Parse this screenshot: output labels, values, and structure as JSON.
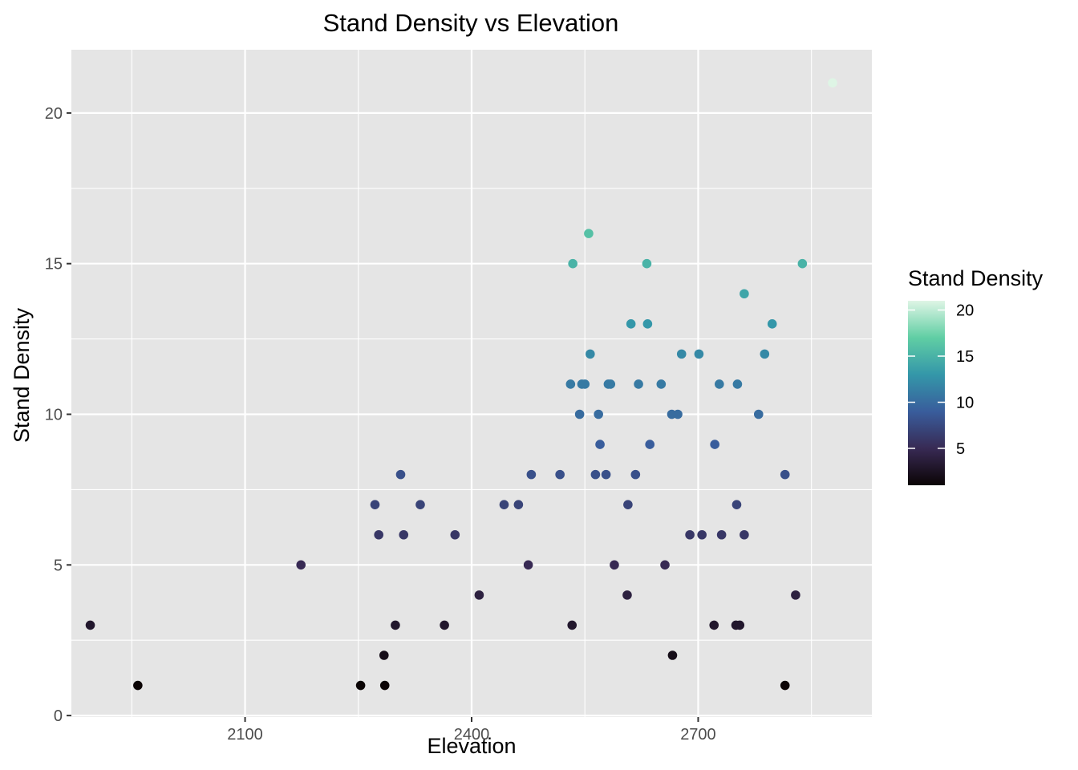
{
  "chart_data": {
    "type": "scatter",
    "title": "Stand Density vs Elevation",
    "xlabel": "Elevation",
    "ylabel": "Stand Density",
    "xlim": [
      1870,
      2930
    ],
    "ylim": [
      -0.05,
      22.1
    ],
    "x_ticks": [
      2100,
      2400,
      2700
    ],
    "y_ticks": [
      0,
      5,
      10,
      15,
      20
    ],
    "x_tick_labels": [
      "2100",
      "2400",
      "2700"
    ],
    "y_tick_labels": [
      "0",
      "5",
      "10",
      "15",
      "20"
    ],
    "grid": true,
    "legend": {
      "title": "Stand Density",
      "placement": "right",
      "type": "colorbar",
      "range": [
        1,
        21
      ],
      "ticks": [
        5,
        10,
        15,
        20
      ],
      "tick_labels": [
        "5",
        "10",
        "15",
        "20"
      ]
    },
    "colormap": [
      "#0b0405",
      "#382a54",
      "#395d9c",
      "#3497a9",
      "#60cea4",
      "#def5e5"
    ],
    "background": "#e5e5e5",
    "points": [
      {
        "x": 1895,
        "y": 3
      },
      {
        "x": 1958,
        "y": 1
      },
      {
        "x": 2174,
        "y": 5
      },
      {
        "x": 2253,
        "y": 1
      },
      {
        "x": 2285,
        "y": 1
      },
      {
        "x": 2284,
        "y": 2
      },
      {
        "x": 2299,
        "y": 3
      },
      {
        "x": 2364,
        "y": 3
      },
      {
        "x": 2410,
        "y": 4
      },
      {
        "x": 2272,
        "y": 7
      },
      {
        "x": 2277,
        "y": 6
      },
      {
        "x": 2306,
        "y": 8
      },
      {
        "x": 2310,
        "y": 6
      },
      {
        "x": 2332,
        "y": 7
      },
      {
        "x": 2378,
        "y": 6
      },
      {
        "x": 2443,
        "y": 7
      },
      {
        "x": 2462,
        "y": 7
      },
      {
        "x": 2475,
        "y": 5
      },
      {
        "x": 2479,
        "y": 8
      },
      {
        "x": 2517,
        "y": 8
      },
      {
        "x": 2533,
        "y": 3
      },
      {
        "x": 2531,
        "y": 11
      },
      {
        "x": 2534,
        "y": 15
      },
      {
        "x": 2543,
        "y": 10
      },
      {
        "x": 2546,
        "y": 11
      },
      {
        "x": 2550,
        "y": 11
      },
      {
        "x": 2555,
        "y": 16
      },
      {
        "x": 2557,
        "y": 12
      },
      {
        "x": 2564,
        "y": 8
      },
      {
        "x": 2568,
        "y": 10
      },
      {
        "x": 2570,
        "y": 9
      },
      {
        "x": 2578,
        "y": 8
      },
      {
        "x": 2581,
        "y": 11
      },
      {
        "x": 2584,
        "y": 11
      },
      {
        "x": 2589,
        "y": 5
      },
      {
        "x": 2606,
        "y": 4
      },
      {
        "x": 2607,
        "y": 7
      },
      {
        "x": 2611,
        "y": 13
      },
      {
        "x": 2617,
        "y": 8
      },
      {
        "x": 2621,
        "y": 11
      },
      {
        "x": 2632,
        "y": 15
      },
      {
        "x": 2633,
        "y": 13
      },
      {
        "x": 2636,
        "y": 9
      },
      {
        "x": 2651,
        "y": 11
      },
      {
        "x": 2656,
        "y": 5
      },
      {
        "x": 2665,
        "y": 10
      },
      {
        "x": 2666,
        "y": 2
      },
      {
        "x": 2673,
        "y": 10
      },
      {
        "x": 2678,
        "y": 12
      },
      {
        "x": 2689,
        "y": 6
      },
      {
        "x": 2701,
        "y": 12
      },
      {
        "x": 2705,
        "y": 6
      },
      {
        "x": 2721,
        "y": 3
      },
      {
        "x": 2722,
        "y": 9
      },
      {
        "x": 2728,
        "y": 11
      },
      {
        "x": 2731,
        "y": 6
      },
      {
        "x": 2750,
        "y": 3
      },
      {
        "x": 2751,
        "y": 7
      },
      {
        "x": 2752,
        "y": 11
      },
      {
        "x": 2755,
        "y": 3
      },
      {
        "x": 2761,
        "y": 14
      },
      {
        "x": 2761,
        "y": 6
      },
      {
        "x": 2780,
        "y": 10
      },
      {
        "x": 2788,
        "y": 12
      },
      {
        "x": 2798,
        "y": 13
      },
      {
        "x": 2815,
        "y": 8
      },
      {
        "x": 2815,
        "y": 1
      },
      {
        "x": 2829,
        "y": 4
      },
      {
        "x": 2838,
        "y": 15
      },
      {
        "x": 2878,
        "y": 21
      }
    ]
  }
}
